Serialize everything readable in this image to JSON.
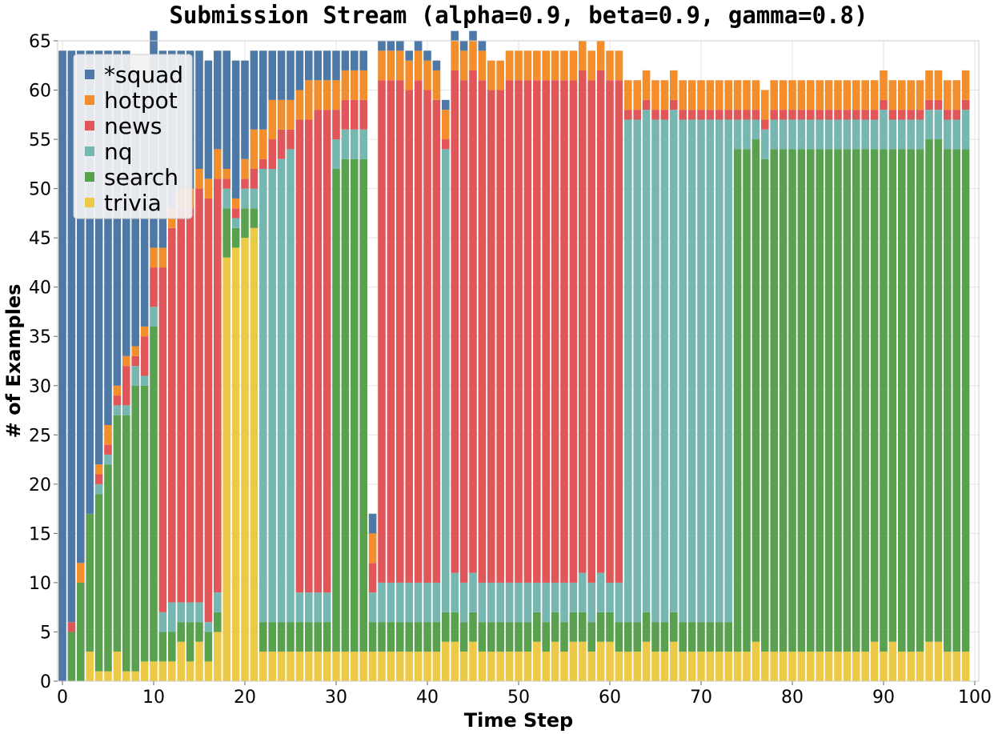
{
  "chart_data": {
    "type": "bar",
    "stacked": true,
    "title": "Submission Stream (alpha=0.9, beta=0.9, gamma=0.8)",
    "xlabel": "Time Step",
    "ylabel": "# of Examples",
    "xlim": [
      0,
      100
    ],
    "ylim": [
      0,
      65
    ],
    "xticks": [
      0,
      10,
      20,
      30,
      40,
      50,
      60,
      70,
      80,
      90,
      100
    ],
    "yticks": [
      0,
      5,
      10,
      15,
      20,
      25,
      30,
      35,
      40,
      45,
      50,
      55,
      60,
      65
    ],
    "grid": true,
    "legend_position": "top-left",
    "x": [
      0,
      1,
      2,
      3,
      4,
      5,
      6,
      7,
      8,
      9,
      10,
      11,
      12,
      13,
      14,
      15,
      16,
      17,
      18,
      19,
      20,
      21,
      22,
      23,
      24,
      25,
      26,
      27,
      28,
      29,
      30,
      31,
      32,
      33,
      34,
      35,
      36,
      37,
      38,
      39,
      40,
      41,
      42,
      43,
      44,
      45,
      46,
      47,
      48,
      49,
      50,
      51,
      52,
      53,
      54,
      55,
      56,
      57,
      58,
      59,
      60,
      61,
      62,
      63,
      64,
      65,
      66,
      67,
      68,
      69,
      70,
      71,
      72,
      73,
      74,
      75,
      76,
      77,
      78,
      79,
      80,
      81,
      82,
      83,
      84,
      85,
      86,
      87,
      88,
      89,
      90,
      91,
      92,
      93,
      94,
      95,
      96,
      97,
      98,
      99
    ],
    "series": [
      {
        "name": "trivia",
        "color": "#edc948",
        "values": [
          0,
          0,
          0,
          3,
          1,
          1,
          3,
          1,
          1,
          2,
          2,
          2,
          2,
          4,
          2,
          4,
          2,
          5,
          43,
          44,
          45,
          46,
          3,
          3,
          3,
          3,
          3,
          3,
          3,
          3,
          3,
          3,
          3,
          3,
          3,
          3,
          3,
          3,
          3,
          3,
          3,
          3,
          4,
          4,
          3,
          4,
          3,
          3,
          3,
          3,
          3,
          3,
          4,
          3,
          4,
          3,
          4,
          4,
          3,
          4,
          4,
          3,
          3,
          3,
          4,
          3,
          3,
          4,
          3,
          3,
          3,
          3,
          3,
          3,
          3,
          3,
          4,
          3,
          3,
          3,
          3,
          3,
          3,
          3,
          3,
          3,
          3,
          3,
          3,
          4,
          3,
          4,
          3,
          3,
          3,
          4,
          4,
          3,
          3,
          3
        ]
      },
      {
        "name": "search",
        "color": "#59a14f",
        "values": [
          0,
          5,
          10,
          14,
          18,
          21,
          24,
          26,
          29,
          28,
          34,
          3,
          3,
          2,
          4,
          2,
          3,
          2,
          5,
          2,
          3,
          2,
          3,
          3,
          3,
          3,
          3,
          3,
          3,
          3,
          49,
          50,
          50,
          50,
          3,
          3,
          3,
          3,
          3,
          3,
          3,
          3,
          3,
          3,
          3,
          3,
          3,
          3,
          3,
          3,
          3,
          3,
          3,
          3,
          3,
          3,
          3,
          3,
          3,
          3,
          3,
          3,
          3,
          3,
          3,
          3,
          3,
          3,
          3,
          3,
          3,
          3,
          3,
          3,
          51,
          51,
          51,
          50,
          51,
          51,
          51,
          51,
          51,
          51,
          51,
          51,
          51,
          51,
          51,
          50,
          51,
          50,
          51,
          51,
          51,
          51,
          51,
          51,
          51,
          51
        ]
      },
      {
        "name": "nq",
        "color": "#76b7b2",
        "values": [
          0,
          0,
          0,
          0,
          1,
          1,
          1,
          1,
          2,
          1,
          2,
          2,
          3,
          2,
          2,
          2,
          1,
          2,
          2,
          1,
          2,
          2,
          46,
          46,
          47,
          48,
          3,
          3,
          3,
          3,
          3,
          3,
          3,
          3,
          3,
          4,
          4,
          4,
          4,
          4,
          4,
          4,
          47,
          4,
          4,
          4,
          4,
          4,
          4,
          4,
          4,
          4,
          3,
          4,
          3,
          4,
          3,
          4,
          4,
          4,
          3,
          4,
          51,
          51,
          51,
          51,
          51,
          51,
          51,
          51,
          51,
          51,
          51,
          51,
          3,
          3,
          2,
          3,
          3,
          3,
          3,
          3,
          3,
          3,
          3,
          3,
          3,
          3,
          3,
          3,
          4,
          3,
          3,
          3,
          3,
          3,
          3,
          3,
          3,
          4
        ]
      },
      {
        "name": "news",
        "color": "#e15759",
        "values": [
          0,
          1,
          0,
          0,
          1,
          1,
          1,
          4,
          1,
          4,
          4,
          35,
          38,
          40,
          40,
          42,
          43,
          42,
          1,
          1,
          1,
          2,
          1,
          3,
          3,
          2,
          48,
          48,
          49,
          49,
          3,
          3,
          3,
          3,
          3,
          51,
          51,
          51,
          50,
          51,
          50,
          49,
          1,
          51,
          51,
          51,
          51,
          50,
          50,
          51,
          51,
          51,
          51,
          51,
          51,
          51,
          51,
          51,
          51,
          51,
          51,
          51,
          1,
          1,
          1,
          1,
          1,
          1,
          1,
          1,
          1,
          1,
          1,
          1,
          1,
          1,
          1,
          1,
          1,
          1,
          1,
          1,
          1,
          1,
          1,
          1,
          1,
          1,
          1,
          1,
          1,
          1,
          1,
          1,
          1,
          1,
          1,
          1,
          1,
          1
        ]
      },
      {
        "name": "hotpot",
        "color": "#f28e2b",
        "values": [
          0,
          0,
          2,
          0,
          1,
          2,
          1,
          1,
          1,
          1,
          2,
          2,
          2,
          2,
          2,
          2,
          2,
          3,
          1,
          1,
          2,
          4,
          3,
          4,
          3,
          3,
          3,
          4,
          3,
          3,
          3,
          3,
          3,
          3,
          3,
          3,
          3,
          3,
          3,
          3,
          3,
          3,
          3,
          3,
          3,
          3,
          3,
          3,
          3,
          3,
          3,
          3,
          3,
          3,
          3,
          3,
          3,
          3,
          3,
          3,
          3,
          3,
          3,
          3,
          3,
          3,
          3,
          3,
          3,
          3,
          3,
          3,
          3,
          3,
          3,
          3,
          3,
          3,
          3,
          3,
          3,
          3,
          3,
          3,
          3,
          3,
          3,
          3,
          3,
          3,
          3,
          3,
          3,
          3,
          3,
          3,
          3,
          3,
          3,
          3
        ]
      },
      {
        "name": "*squad",
        "color": "#4e79a7",
        "values": [
          64,
          58,
          52,
          47,
          42,
          38,
          34,
          31,
          28,
          25,
          22,
          20,
          16,
          14,
          14,
          12,
          12,
          10,
          12,
          14,
          10,
          8,
          8,
          5,
          5,
          5,
          4,
          3,
          3,
          3,
          3,
          2,
          2,
          2,
          2,
          1,
          1,
          1,
          1,
          1,
          1,
          1,
          1,
          1,
          1,
          1,
          1,
          0,
          0,
          0,
          0,
          0,
          0,
          0,
          0,
          0,
          0,
          0,
          0,
          0,
          0,
          0,
          0,
          0,
          0,
          0,
          0,
          0,
          0,
          0,
          0,
          0,
          0,
          0,
          0,
          0,
          0,
          0,
          0,
          0,
          0,
          0,
          0,
          0,
          0,
          0,
          0,
          0,
          0,
          0,
          0,
          0,
          0,
          0,
          0,
          0,
          0,
          0,
          0,
          0
        ]
      }
    ],
    "legend_order": [
      "*squad",
      "hotpot",
      "news",
      "nq",
      "search",
      "trivia"
    ]
  }
}
